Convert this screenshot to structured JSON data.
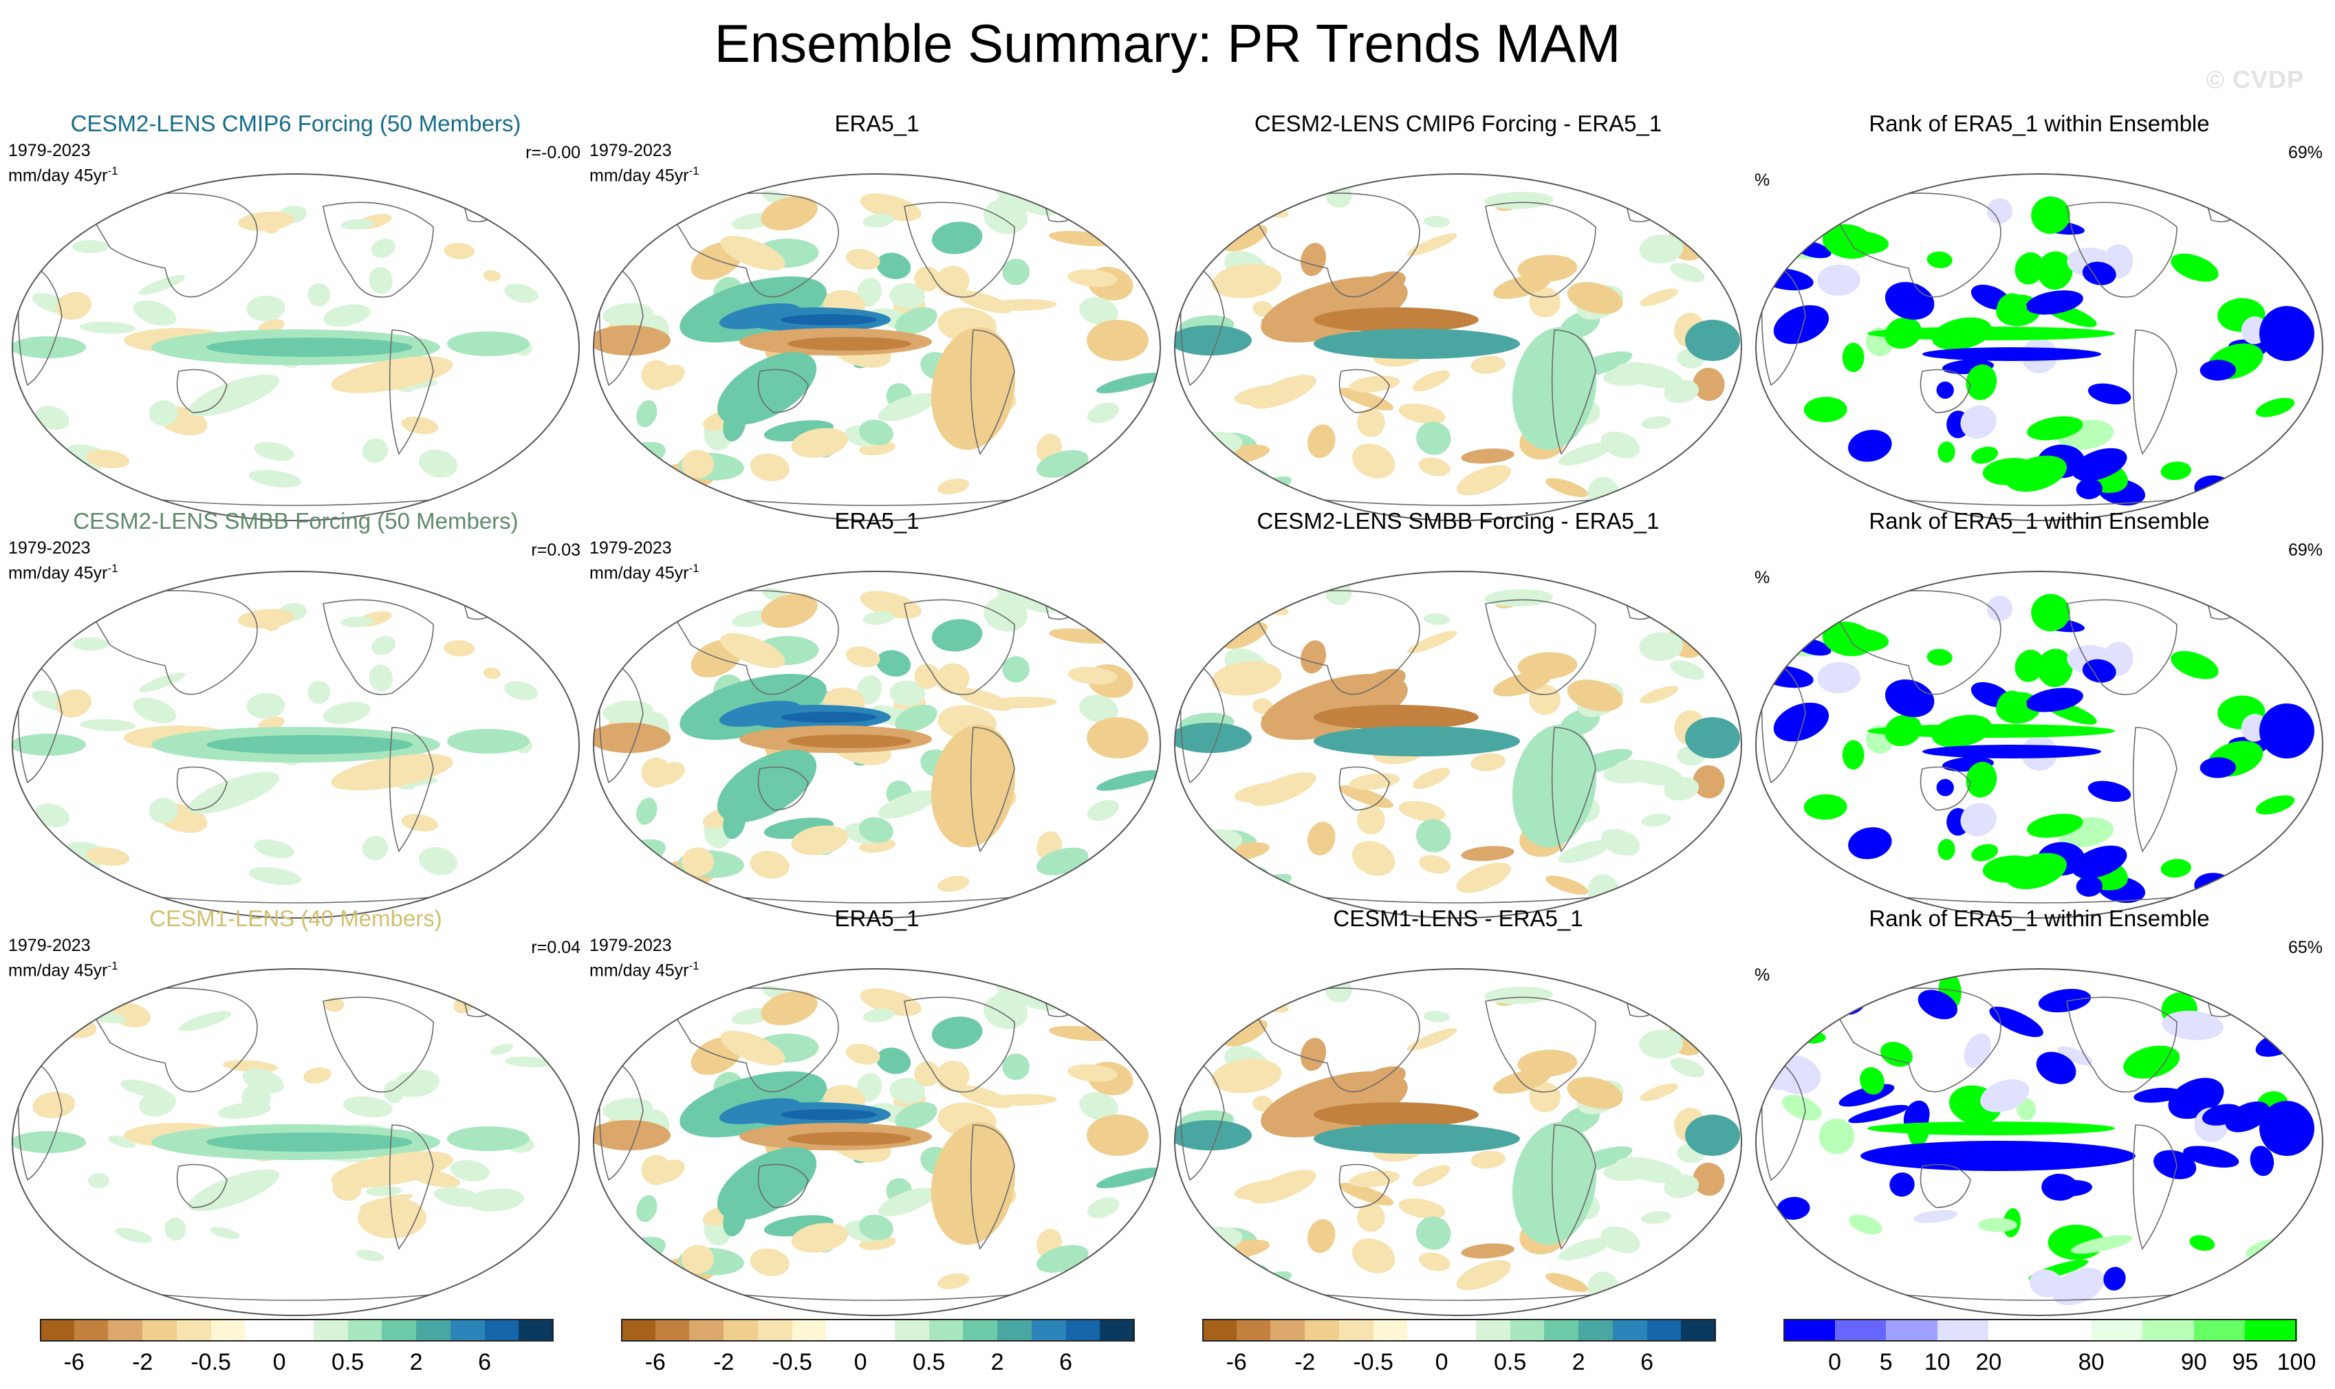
{
  "title": "Ensemble Summary: PR Trends MAM",
  "watermark": "© CVDP",
  "map_type": "global precipitation trend maps, Robinson-like elliptical projection, 3 rows x 4 columns",
  "colors": {
    "pr_scale": [
      "#a6611a",
      "#c38140",
      "#dba76a",
      "#f0cf8e",
      "#f7e3b0",
      "#fdf7d4",
      "#ffffff",
      "#ffffff",
      "#d8f4d8",
      "#a8e6c0",
      "#6ccaa8",
      "#4aa6a0",
      "#2c85b8",
      "#1565a8",
      "#0a3a5f"
    ],
    "rank_scale": [
      "#0000ff",
      "#6666ff",
      "#a0a0ff",
      "#e0e0ff",
      "#ffffff",
      "#ffffff",
      "#e6ffe6",
      "#b8ffb8",
      "#66ff66",
      "#00ff00"
    ]
  },
  "rows": [
    {
      "panels": [
        {
          "kind": "model",
          "title": "CESM2-LENS CMIP6 Forcing (50 Members)",
          "title_color": "#146c8a",
          "period": "1979-2023",
          "units_main": "mm/day 45yr",
          "units_exp": "-1",
          "r": "r=-0.00",
          "pattern": "model"
        },
        {
          "kind": "obs",
          "title": "ERA5_1",
          "period": "1979-2023",
          "units_main": "mm/day 45yr",
          "units_exp": "-1",
          "pattern": "obs"
        },
        {
          "kind": "diff",
          "title": "CESM2-LENS CMIP6 Forcing - ERA5_1",
          "pattern": "diff"
        },
        {
          "kind": "rank",
          "title": "Rank of ERA5_1 within Ensemble",
          "unit": "%",
          "pct": "69%",
          "pattern": "rank"
        }
      ]
    },
    {
      "panels": [
        {
          "kind": "model",
          "title": "CESM2-LENS SMBB Forcing (50 Members)",
          "title_color": "#5e8a68",
          "period": "1979-2023",
          "units_main": "mm/day 45yr",
          "units_exp": "-1",
          "r": "r=0.03",
          "pattern": "model"
        },
        {
          "kind": "obs",
          "title": "ERA5_1",
          "period": "1979-2023",
          "units_main": "mm/day 45yr",
          "units_exp": "-1",
          "pattern": "obs"
        },
        {
          "kind": "diff",
          "title": "CESM2-LENS SMBB Forcing - ERA5_1",
          "pattern": "diff"
        },
        {
          "kind": "rank",
          "title": "Rank of ERA5_1 within Ensemble",
          "unit": "%",
          "pct": "69%",
          "pattern": "rank"
        }
      ]
    },
    {
      "panels": [
        {
          "kind": "model",
          "title": "CESM1-LENS (40 Members)",
          "title_color": "#d1bf6e",
          "period": "1979-2023",
          "units_main": "mm/day 45yr",
          "units_exp": "-1",
          "r": "r=0.04",
          "pattern": "model3"
        },
        {
          "kind": "obs",
          "title": "ERA5_1",
          "period": "1979-2023",
          "units_main": "mm/day 45yr",
          "units_exp": "-1",
          "pattern": "obs"
        },
        {
          "kind": "diff",
          "title": "CESM1-LENS - ERA5_1",
          "pattern": "diff"
        },
        {
          "kind": "rank",
          "title": "Rank of ERA5_1 within Ensemble",
          "unit": "%",
          "pct": "65%",
          "pattern": "rank3"
        }
      ]
    }
  ],
  "colorbars": [
    {
      "scale": "pr_scale",
      "labels": [
        {
          "text": "-6",
          "at": 1
        },
        {
          "text": "-2",
          "at": 3
        },
        {
          "text": "-0.5",
          "at": 5
        },
        {
          "text": "0",
          "at": 7
        },
        {
          "text": "0.5",
          "at": 9
        },
        {
          "text": "2",
          "at": 11
        },
        {
          "text": "6",
          "at": 13
        }
      ]
    },
    {
      "scale": "pr_scale",
      "labels": [
        {
          "text": "-6",
          "at": 1
        },
        {
          "text": "-2",
          "at": 3
        },
        {
          "text": "-0.5",
          "at": 5
        },
        {
          "text": "0",
          "at": 7
        },
        {
          "text": "0.5",
          "at": 9
        },
        {
          "text": "2",
          "at": 11
        },
        {
          "text": "6",
          "at": 13
        }
      ]
    },
    {
      "scale": "pr_scale",
      "labels": [
        {
          "text": "-6",
          "at": 1
        },
        {
          "text": "-2",
          "at": 3
        },
        {
          "text": "-0.5",
          "at": 5
        },
        {
          "text": "0",
          "at": 7
        },
        {
          "text": "0.5",
          "at": 9
        },
        {
          "text": "2",
          "at": 11
        },
        {
          "text": "6",
          "at": 13
        }
      ]
    },
    {
      "scale": "rank_scale",
      "labels": [
        {
          "text": "0",
          "at": 1
        },
        {
          "text": "5",
          "at": 2
        },
        {
          "text": "10",
          "at": 3
        },
        {
          "text": "20",
          "at": 4
        },
        {
          "text": "80",
          "at": 6
        },
        {
          "text": "90",
          "at": 8
        },
        {
          "text": "95",
          "at": 9
        },
        {
          "text": "100",
          "at": 10
        }
      ]
    }
  ]
}
